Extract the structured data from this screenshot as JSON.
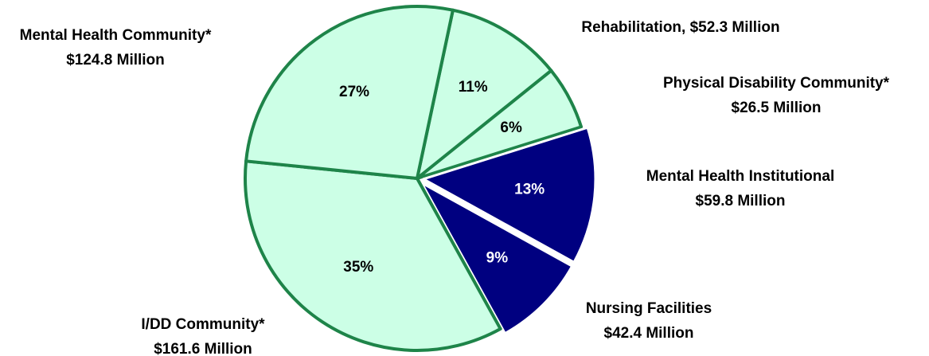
{
  "chart_data": {
    "type": "pie",
    "labels": [
      [
        "Rehabilitation, $52.3 Million"
      ],
      [
        "Physical Disability Community*",
        "$26.5 Million"
      ],
      [
        "Mental Health Institutional",
        "$59.8 Million"
      ],
      [
        "Nursing Facilities",
        "$42.4 Million"
      ],
      [
        "I/DD Community*",
        "$161.6 Million"
      ],
      [
        "Mental Health Community*",
        "$124.8 Million"
      ]
    ],
    "values": [
      11,
      6,
      13,
      9,
      35,
      27
    ],
    "value_labels": [
      "11%",
      "6%",
      "13%",
      "9%",
      "35%",
      "27%"
    ],
    "colors": [
      "#ccffe6",
      "#ccffe6",
      "#000080",
      "#000080",
      "#ccffe6",
      "#ccffe6"
    ],
    "edge_colors": [
      "#1e8449",
      "#1e8449",
      "#ffffff",
      "#ffffff",
      "#1e8449",
      "#1e8449"
    ]
  }
}
